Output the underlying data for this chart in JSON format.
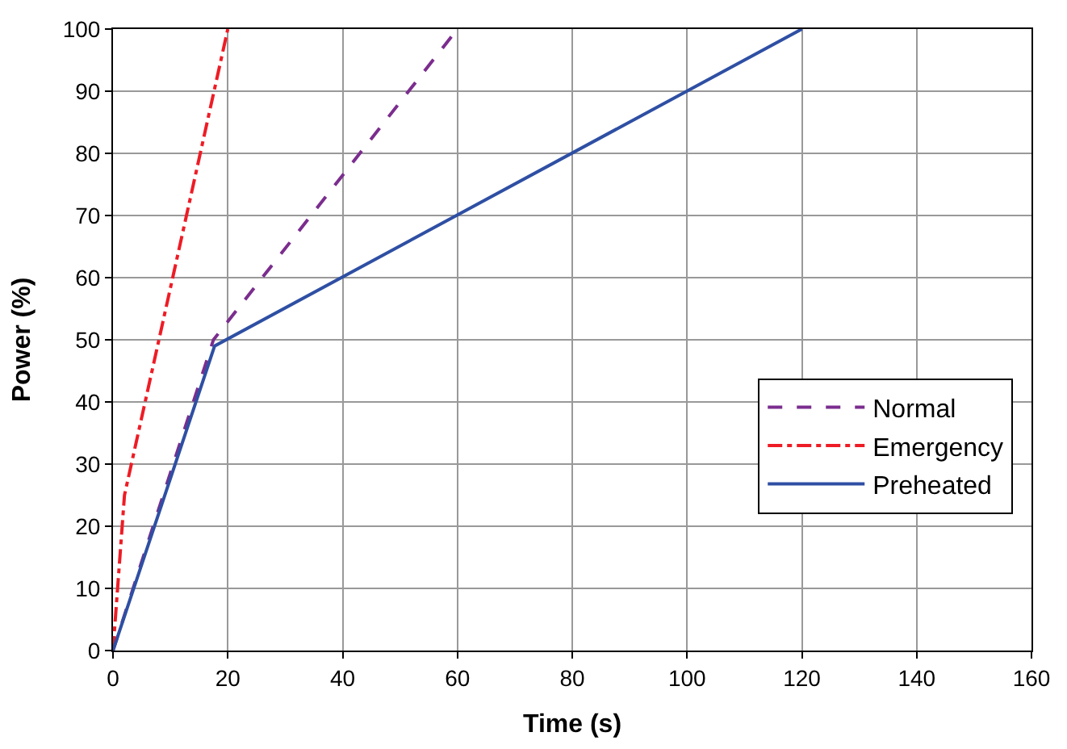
{
  "chart_data": {
    "type": "line",
    "xlabel": "Time (s)",
    "ylabel": "Power (%)",
    "xlim": [
      0,
      160
    ],
    "xticks": [
      0,
      20,
      40,
      60,
      80,
      100,
      120,
      140,
      160
    ],
    "ylim": [
      0,
      100
    ],
    "yticks": [
      0,
      10,
      20,
      30,
      40,
      50,
      60,
      70,
      80,
      90,
      100
    ],
    "grid": true,
    "legend": "bottom right",
    "marker": "none",
    "series": [
      {
        "name": "Normal",
        "color": "#7b2d8e",
        "line_style": "dashed",
        "x": [
          0,
          17.5,
          60
        ],
        "values": [
          0,
          50,
          100
        ]
      },
      {
        "name": "Emergency",
        "color": "#ee1c25",
        "line_style": "dashdot",
        "x": [
          0,
          0.8,
          2,
          20
        ],
        "values": [
          0,
          10,
          25,
          100
        ]
      },
      {
        "name": "Preheated",
        "color": "#2e4fa3",
        "line_style": "solid",
        "x": [
          0,
          17.7,
          120
        ],
        "values": [
          0,
          49,
          100
        ]
      }
    ]
  }
}
